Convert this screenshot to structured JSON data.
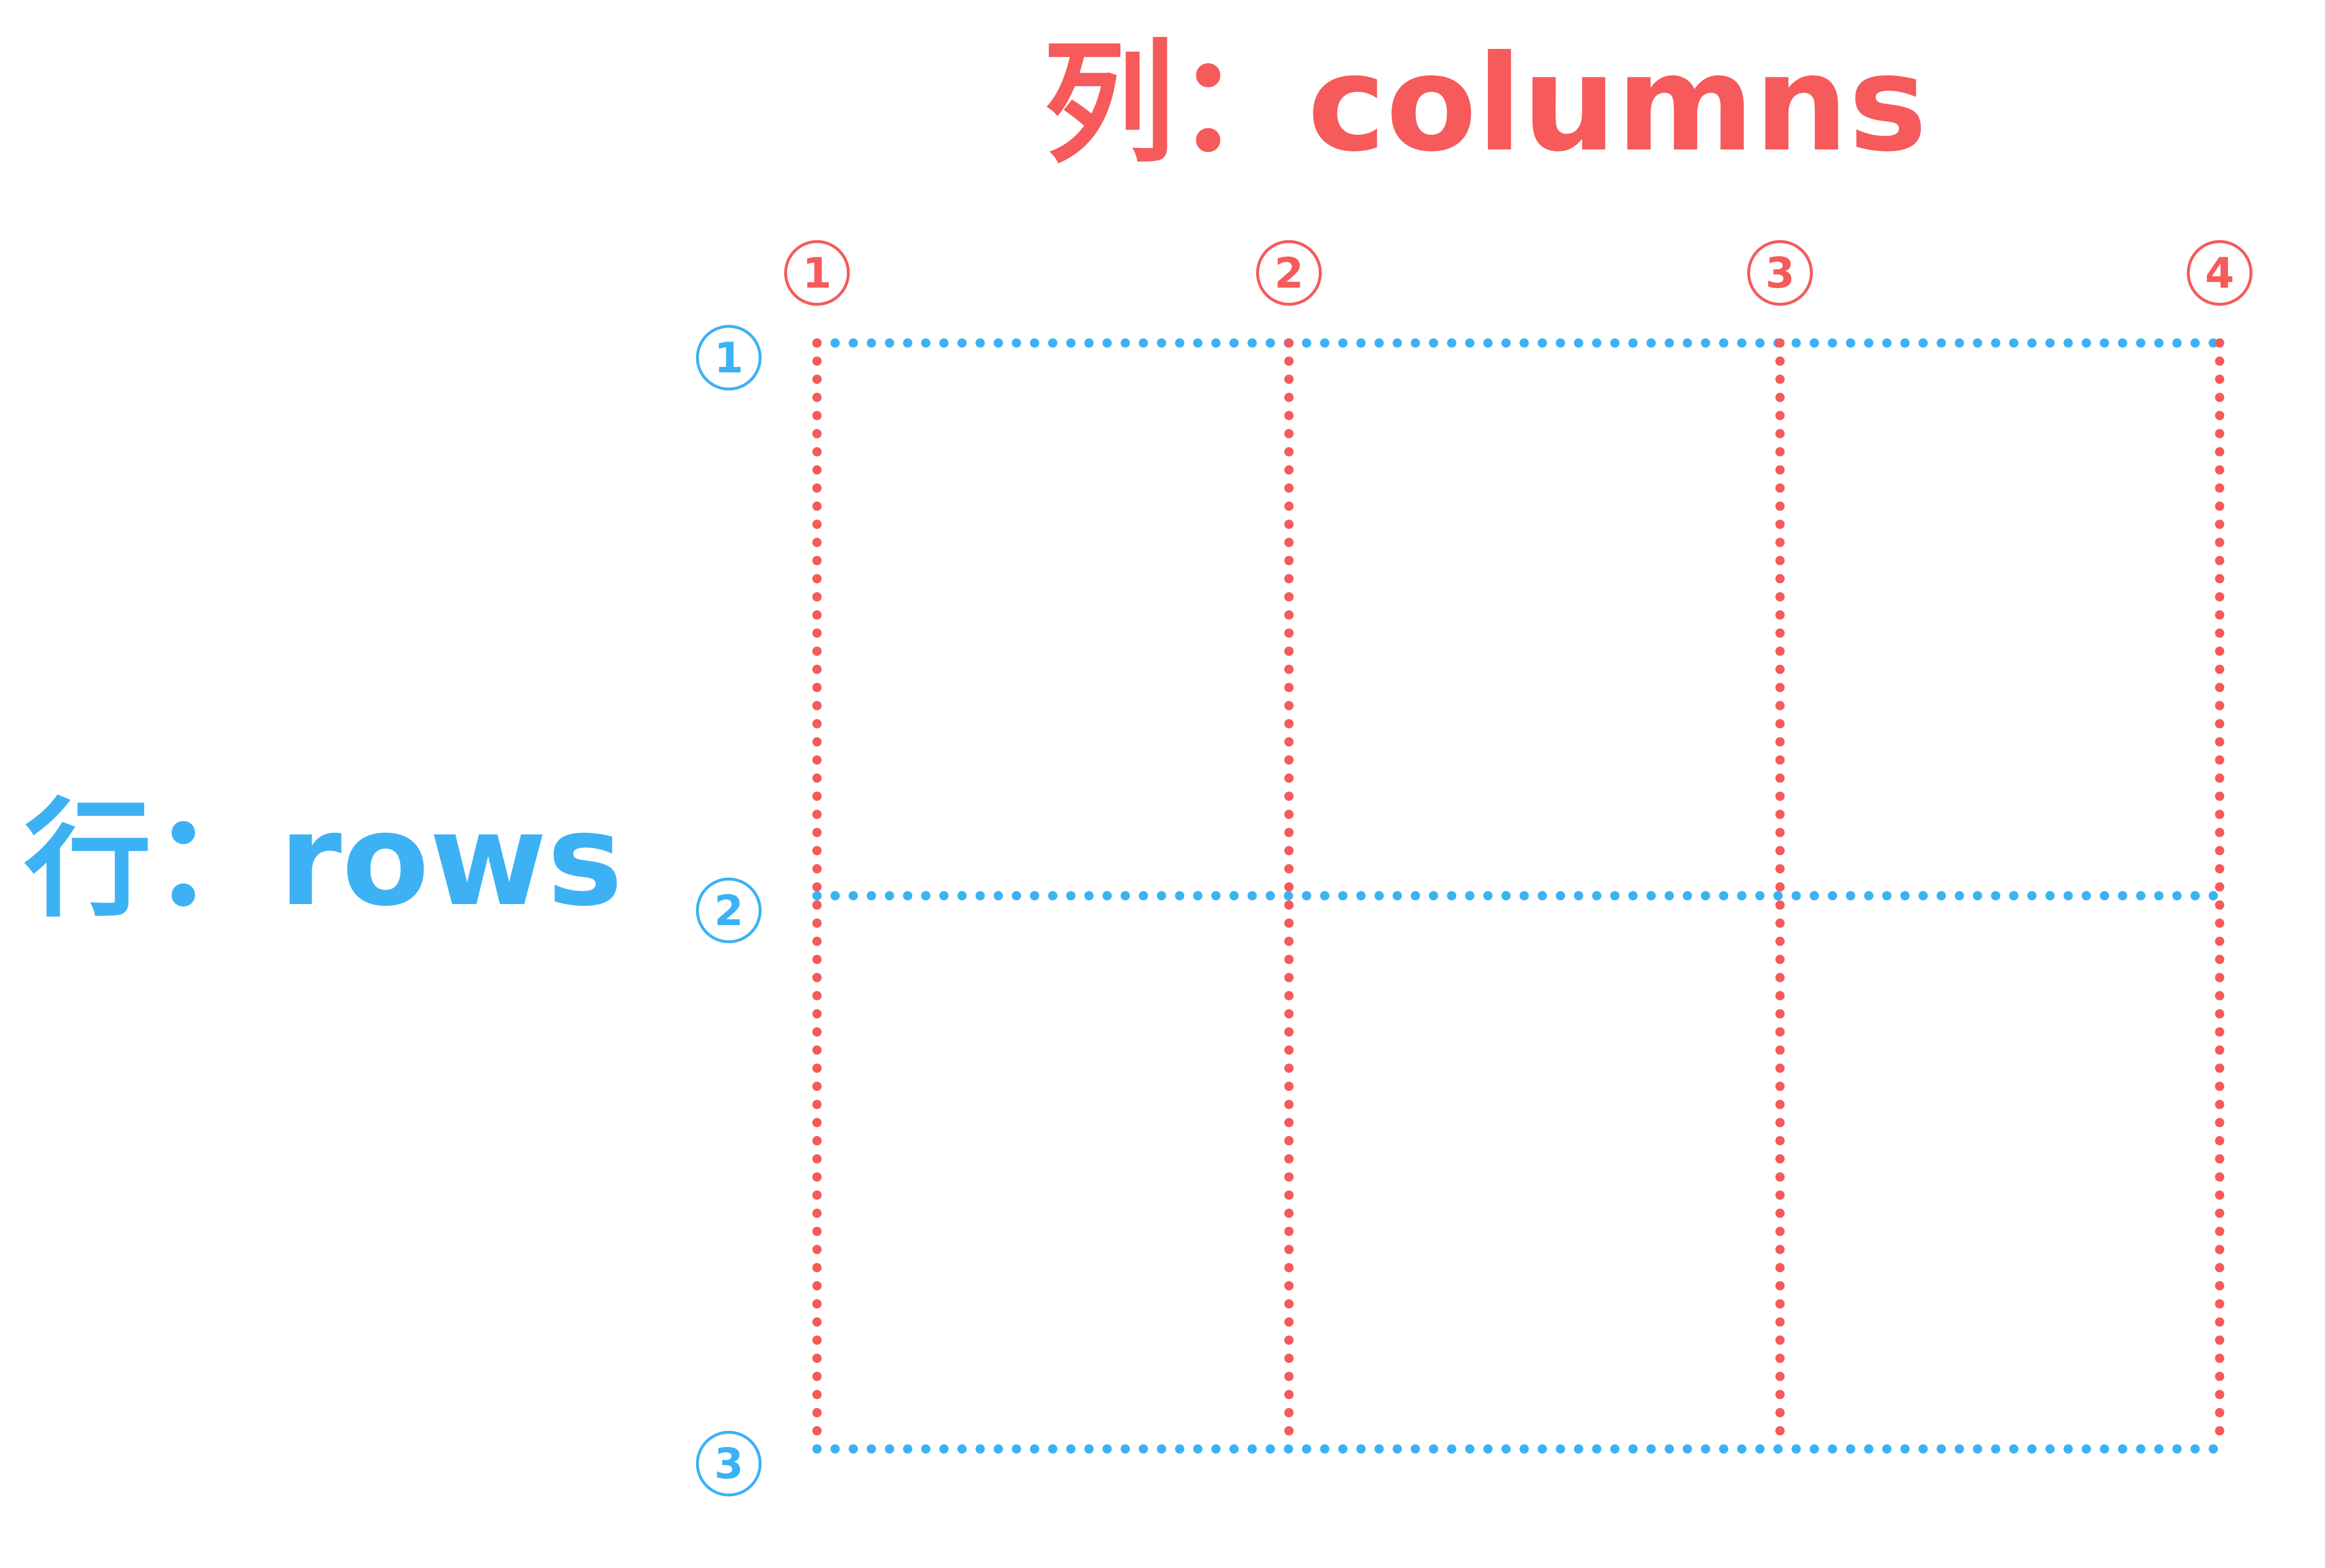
{
  "colors": {
    "columns": "#F65A5A",
    "rows": "#3CB2F4",
    "background": "#FFFFFF"
  },
  "columns_title": "列：columns",
  "rows_title": "行：rows",
  "column_lines": [
    {
      "label": "1"
    },
    {
      "label": "2"
    },
    {
      "label": "3"
    },
    {
      "label": "4"
    }
  ],
  "row_lines": [
    {
      "label": "1"
    },
    {
      "label": "2"
    },
    {
      "label": "3"
    }
  ]
}
